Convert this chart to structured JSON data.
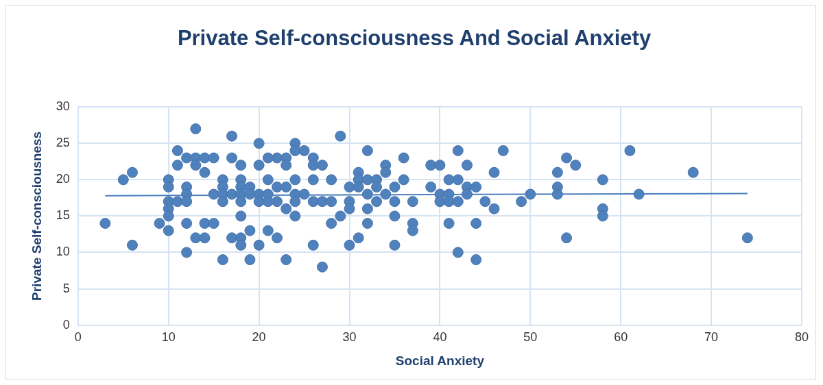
{
  "chart_data": {
    "type": "scatter",
    "title": "Private Self-consciousness And Social Anxiety",
    "xlabel": "Social Anxiety",
    "ylabel": "Private Self-consciousness",
    "series": [
      {
        "marker": "circle",
        "color": "#4f81bd",
        "x": [
          3,
          5,
          6,
          6,
          9,
          10,
          10,
          10,
          10,
          10,
          10,
          11,
          11,
          11,
          12,
          12,
          12,
          12,
          12,
          12,
          13,
          13,
          13,
          13,
          14,
          14,
          14,
          14,
          15,
          15,
          15,
          16,
          16,
          16,
          16,
          16,
          17,
          17,
          17,
          17,
          18,
          18,
          18,
          18,
          18,
          18,
          18,
          18,
          19,
          19,
          19,
          19,
          20,
          20,
          20,
          20,
          20,
          21,
          21,
          21,
          21,
          21,
          22,
          22,
          22,
          22,
          23,
          23,
          23,
          23,
          23,
          24,
          24,
          24,
          24,
          24,
          24,
          25,
          25,
          26,
          26,
          26,
          26,
          26,
          27,
          27,
          27,
          28,
          28,
          28,
          29,
          29,
          30,
          30,
          30,
          30,
          31,
          31,
          31,
          31,
          32,
          32,
          32,
          32,
          32,
          33,
          33,
          33,
          34,
          34,
          34,
          35,
          35,
          35,
          35,
          36,
          36,
          37,
          37,
          37,
          39,
          39,
          40,
          40,
          40,
          41,
          41,
          41,
          41,
          42,
          42,
          42,
          42,
          43,
          43,
          43,
          44,
          44,
          44,
          45,
          46,
          46,
          47,
          49,
          50,
          53,
          53,
          53,
          54,
          54,
          55,
          58,
          58,
          58,
          61,
          62,
          68,
          74
        ],
        "values": [
          14,
          20,
          21,
          11,
          14,
          20,
          19,
          17,
          16,
          15,
          13,
          24,
          22,
          17,
          23,
          19,
          18,
          17,
          14,
          10,
          27,
          23,
          22,
          12,
          23,
          21,
          14,
          12,
          23,
          18,
          14,
          20,
          19,
          18,
          17,
          9,
          26,
          23,
          18,
          12,
          22,
          20,
          19,
          18,
          17,
          15,
          12,
          11,
          19,
          18,
          13,
          9,
          25,
          22,
          18,
          17,
          11,
          23,
          20,
          18,
          17,
          13,
          23,
          19,
          17,
          12,
          23,
          22,
          19,
          16,
          9,
          25,
          24,
          20,
          18,
          17,
          15,
          24,
          18,
          23,
          22,
          20,
          17,
          11,
          22,
          17,
          8,
          20,
          17,
          14,
          26,
          15,
          19,
          17,
          16,
          11,
          21,
          20,
          19,
          12,
          24,
          20,
          18,
          16,
          14,
          20,
          19,
          17,
          22,
          21,
          18,
          19,
          17,
          15,
          11,
          23,
          20,
          17,
          14,
          13,
          22,
          19,
          22,
          18,
          17,
          20,
          18,
          17,
          14,
          24,
          20,
          17,
          10,
          22,
          19,
          18,
          19,
          14,
          9,
          17,
          21,
          16,
          24,
          17,
          18,
          21,
          19,
          18,
          23,
          12,
          22,
          20,
          16,
          15,
          24,
          18,
          21,
          12
        ]
      },
      {
        "type": "line",
        "marker": "none",
        "color": "#4a7ebb",
        "x": [
          3,
          74
        ],
        "values": [
          17.8,
          18.1
        ]
      }
    ],
    "xlim": [
      0,
      80
    ],
    "xticks": [
      0,
      10,
      20,
      30,
      40,
      50,
      60,
      70,
      80
    ],
    "ylim": [
      0,
      30
    ],
    "yticks": [
      0,
      5,
      10,
      15,
      20,
      25,
      30
    ],
    "grid": true,
    "legend": false
  }
}
